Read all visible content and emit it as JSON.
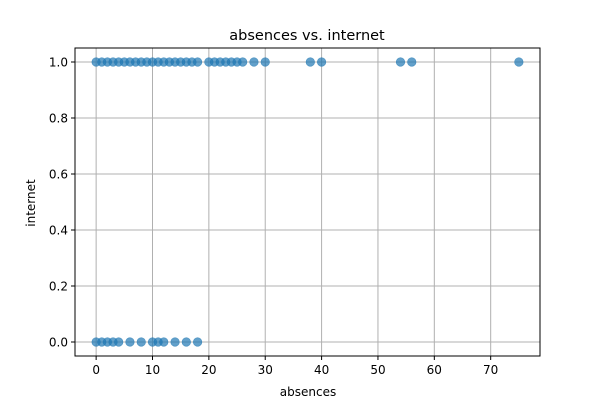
{
  "chart_data": {
    "type": "scatter",
    "title": "absences vs. internet",
    "xlabel": "absences",
    "ylabel": "internet",
    "xlim": [
      -3.75,
      78.75
    ],
    "ylim": [
      -0.05,
      1.05
    ],
    "xticks": [
      0,
      10,
      20,
      30,
      40,
      50,
      60,
      70
    ],
    "xtick_labels": [
      "0",
      "10",
      "20",
      "30",
      "40",
      "50",
      "60",
      "70"
    ],
    "yticks": [
      0.0,
      0.2,
      0.4,
      0.6,
      0.8,
      1.0
    ],
    "ytick_labels": [
      "0.0",
      "0.2",
      "0.4",
      "0.6",
      "0.8",
      "1.0"
    ],
    "grid": true,
    "point_color": "#1f77b4",
    "series": [
      {
        "points": [
          [
            0,
            1
          ],
          [
            1,
            1
          ],
          [
            2,
            1
          ],
          [
            3,
            1
          ],
          [
            4,
            1
          ],
          [
            5,
            1
          ],
          [
            6,
            1
          ],
          [
            7,
            1
          ],
          [
            8,
            1
          ],
          [
            9,
            1
          ],
          [
            10,
            1
          ],
          [
            11,
            1
          ],
          [
            12,
            1
          ],
          [
            13,
            1
          ],
          [
            14,
            1
          ],
          [
            15,
            1
          ],
          [
            16,
            1
          ],
          [
            17,
            1
          ],
          [
            18,
            1
          ],
          [
            20,
            1
          ],
          [
            21,
            1
          ],
          [
            22,
            1
          ],
          [
            23,
            1
          ],
          [
            24,
            1
          ],
          [
            25,
            1
          ],
          [
            26,
            1
          ],
          [
            28,
            1
          ],
          [
            30,
            1
          ],
          [
            38,
            1
          ],
          [
            40,
            1
          ],
          [
            54,
            1
          ],
          [
            56,
            1
          ],
          [
            75,
            1
          ],
          [
            0,
            0
          ],
          [
            1,
            0
          ],
          [
            2,
            0
          ],
          [
            3,
            0
          ],
          [
            4,
            0
          ],
          [
            6,
            0
          ],
          [
            8,
            0
          ],
          [
            10,
            0
          ],
          [
            11,
            0
          ],
          [
            12,
            0
          ],
          [
            14,
            0
          ],
          [
            16,
            0
          ],
          [
            18,
            0
          ]
        ]
      }
    ]
  }
}
